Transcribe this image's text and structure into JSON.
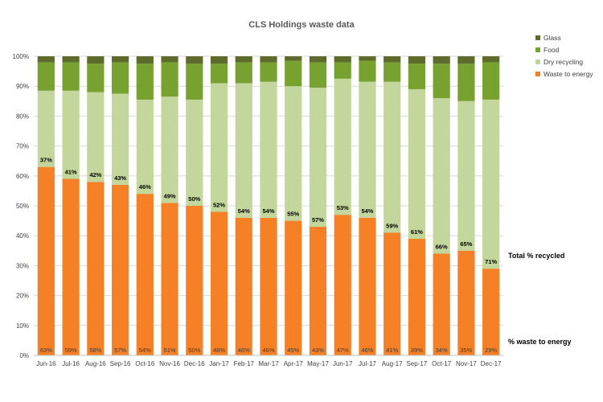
{
  "chart_data": {
    "type": "bar",
    "stacked": true,
    "title": "CLS Holdings waste data",
    "categories": [
      "Jun-16",
      "Jul-16",
      "Aug-16",
      "Sep-16",
      "Oct-16",
      "Nov-16",
      "Dec-16",
      "Jan-17",
      "Feb-17",
      "Mar-17",
      "Apr-17",
      "May-17",
      "Jun-17",
      "Jul-17",
      "Aug-17",
      "Sep-17",
      "Oct-17",
      "Nov-17",
      "Dec-17"
    ],
    "ylim": [
      0,
      100
    ],
    "yticks": [
      "0%",
      "10%",
      "20%",
      "30%",
      "40%",
      "50%",
      "60%",
      "70%",
      "80%",
      "90%",
      "100%"
    ],
    "grid": true,
    "legend_position": "top-right",
    "series": [
      {
        "name": "Waste to energy",
        "color": "#F58025",
        "values": [
          63,
          59,
          58,
          57,
          54,
          51,
          50,
          48,
          46,
          46,
          45,
          43,
          47,
          46,
          41,
          39,
          34,
          35,
          29
        ]
      },
      {
        "name": "Dry recycling",
        "color": "#C3D69B",
        "values": [
          25.5,
          29.5,
          30,
          30.5,
          31.5,
          35.5,
          35.5,
          43,
          45,
          45.5,
          45,
          46.5,
          45.5,
          45.5,
          50.5,
          50,
          52,
          50,
          56.5
        ]
      },
      {
        "name": "Food",
        "color": "#77A22F",
        "values": [
          9.5,
          9.5,
          9.5,
          10.5,
          12,
          11.5,
          12,
          6.5,
          7,
          6.5,
          8.5,
          8.5,
          5.5,
          7,
          6.5,
          8.5,
          11.5,
          12.5,
          12.5
        ]
      },
      {
        "name": "Glass",
        "color": "#5E6B2A",
        "values": [
          2,
          2,
          2.5,
          2,
          2.5,
          2,
          2.5,
          2.5,
          2,
          2,
          1.5,
          2,
          2,
          1.5,
          2,
          2.5,
          2.5,
          2.5,
          2
        ]
      }
    ],
    "recycled_labels": [
      "37%",
      "41%",
      "42%",
      "43%",
      "46%",
      "49%",
      "50%",
      "52%",
      "54%",
      "54%",
      "55%",
      "57%",
      "53%",
      "54%",
      "59%",
      "61%",
      "66%",
      "65%",
      "71%"
    ],
    "energy_labels": [
      "63%",
      "59%",
      "58%",
      "57%",
      "54%",
      "51%",
      "50%",
      "48%",
      "46%",
      "46%",
      "45%",
      "43%",
      "47%",
      "46%",
      "41%",
      "39%",
      "34%",
      "35%",
      "29%"
    ],
    "annotations": {
      "recycled": "Total % recycled",
      "energy": "% waste to energy"
    }
  }
}
